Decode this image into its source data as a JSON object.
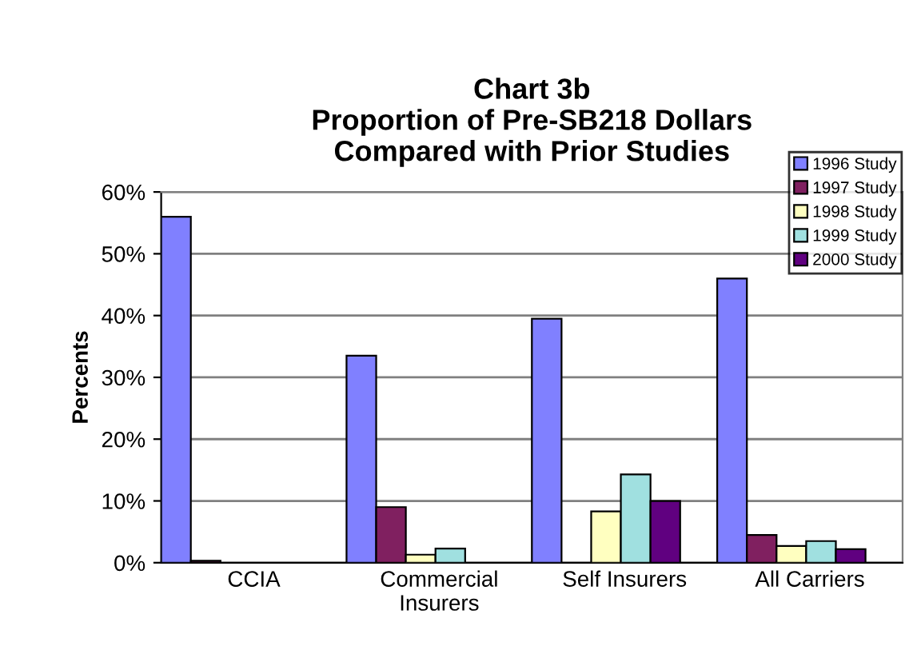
{
  "chart_data": {
    "type": "bar",
    "title": "Chart 3b\nProportion of Pre-SB218 Dollars\nCompared with Prior Studies",
    "ylabel": "Percents",
    "categories": [
      "CCIA",
      "Commercial\nInsurers",
      "Self Insurers",
      "All Carriers"
    ],
    "series": [
      {
        "name": "1996 Study",
        "color": "#8080ff",
        "values": [
          56,
          33.5,
          39.5,
          46
        ]
      },
      {
        "name": "1997 Study",
        "color": "#802060",
        "values": [
          0.3,
          9,
          null,
          4.5
        ]
      },
      {
        "name": "1998 Study",
        "color": "#ffffc0",
        "values": [
          null,
          1.3,
          8.3,
          2.7
        ]
      },
      {
        "name": "1999 Study",
        "color": "#a0e0e0",
        "values": [
          null,
          2.3,
          14.3,
          3.5
        ]
      },
      {
        "name": "2000 Study",
        "color": "#600080",
        "values": [
          null,
          null,
          10,
          2.2
        ]
      }
    ],
    "ylim": [
      0,
      60
    ],
    "yticks": [
      {
        "value": 0,
        "label": "0%"
      },
      {
        "value": 10,
        "label": "10%"
      },
      {
        "value": 20,
        "label": "20%"
      },
      {
        "value": 30,
        "label": "30%"
      },
      {
        "value": 40,
        "label": "40%"
      },
      {
        "value": 50,
        "label": "50%"
      },
      {
        "value": 60,
        "label": "60%"
      }
    ],
    "grid": "y",
    "legend": "top right"
  }
}
